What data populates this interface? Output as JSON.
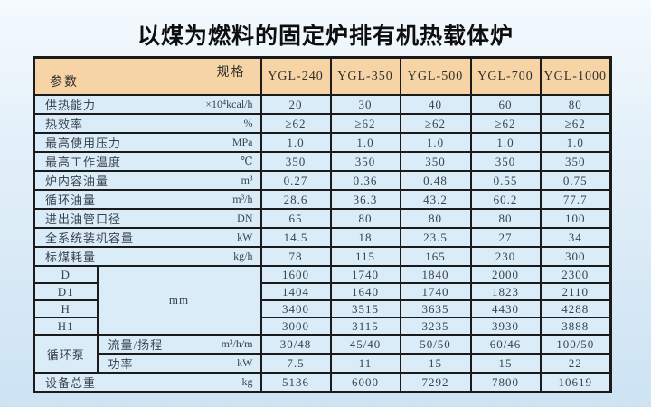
{
  "page": {
    "title": "以煤为燃料的固定炉排有机热载体炉"
  },
  "table": {
    "corner": {
      "top_right": "规格",
      "bottom_left": "参数"
    },
    "models": [
      "YGL-240",
      "YGL-350",
      "YGL-500",
      "YGL-700",
      "YGL-1000"
    ],
    "rows": [
      {
        "type": "simple",
        "label": "供热能力",
        "unit": "×10⁴kcal/h",
        "values": [
          "20",
          "30",
          "40",
          "60",
          "80"
        ]
      },
      {
        "type": "simple",
        "label": "热效率",
        "unit": "%",
        "values": [
          "≥62",
          "≥62",
          "≥62",
          "≥62",
          "≥62"
        ]
      },
      {
        "type": "simple",
        "label": "最高使用压力",
        "unit": "MPa",
        "values": [
          "1.0",
          "1.0",
          "1.0",
          "1.0",
          "1.0"
        ]
      },
      {
        "type": "simple",
        "label": "最高工作温度",
        "unit": "℃",
        "values": [
          "350",
          "350",
          "350",
          "350",
          "350"
        ]
      },
      {
        "type": "simple",
        "label": "炉内容油量",
        "unit": "m³",
        "values": [
          "0.27",
          "0.36",
          "0.48",
          "0.55",
          "0.75"
        ]
      },
      {
        "type": "simple",
        "label": "循环油量",
        "unit": "m³/h",
        "values": [
          "28.6",
          "36.3",
          "43.2",
          "60.2",
          "77.7"
        ]
      },
      {
        "type": "simple",
        "label": "进出油管口径",
        "unit": "DN",
        "values": [
          "65",
          "80",
          "80",
          "80",
          "100"
        ]
      },
      {
        "type": "simple",
        "label": "全系统装机容量",
        "unit": "kW",
        "values": [
          "14.5",
          "18",
          "23.5",
          "27",
          "34"
        ]
      },
      {
        "type": "simple",
        "label": "标煤耗量",
        "unit": "kg/h",
        "values": [
          "78",
          "115",
          "165",
          "230",
          "300"
        ]
      },
      {
        "type": "sub",
        "sublabel": "D",
        "group_unit": "mm",
        "group_span": 4,
        "values": [
          "1600",
          "1740",
          "1840",
          "2000",
          "2300"
        ]
      },
      {
        "type": "sub",
        "sublabel": "D1",
        "values": [
          "1404",
          "1640",
          "1740",
          "1823",
          "2110"
        ]
      },
      {
        "type": "sub",
        "sublabel": "H",
        "values": [
          "3400",
          "3515",
          "3635",
          "4430",
          "4288"
        ]
      },
      {
        "type": "sub",
        "sublabel": "H1",
        "values": [
          "3000",
          "3115",
          "3235",
          "3930",
          "3888"
        ]
      },
      {
        "type": "group",
        "group": "循环泵",
        "group_span": 2,
        "label": "流量/扬程",
        "unit": "m³/h/m",
        "values": [
          "30/48",
          "45/40",
          "50/50",
          "60/46",
          "100/50"
        ]
      },
      {
        "type": "group2",
        "label": "功率",
        "unit": "kW",
        "values": [
          "7.5",
          "11",
          "15",
          "15",
          "22"
        ]
      },
      {
        "type": "simple",
        "label": "设备总重",
        "unit": "kg",
        "values": [
          "5136",
          "6000",
          "7292",
          "7800",
          "10619"
        ]
      }
    ]
  }
}
